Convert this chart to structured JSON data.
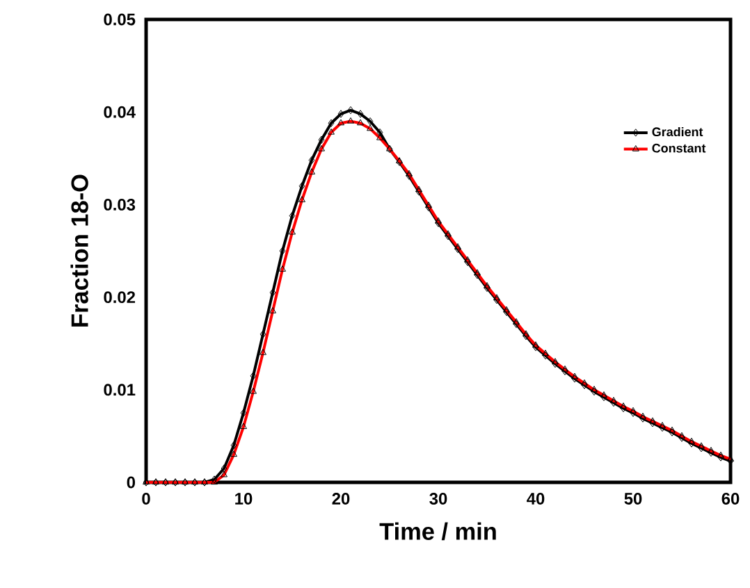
{
  "chart_data": {
    "type": "line",
    "xlabel": "Time / min",
    "ylabel": "Fraction 18-O",
    "x": [
      0,
      1,
      2,
      3,
      4,
      5,
      6,
      7,
      8,
      9,
      10,
      11,
      12,
      13,
      14,
      15,
      16,
      17,
      18,
      19,
      20,
      21,
      22,
      23,
      24,
      25,
      26,
      27,
      28,
      29,
      30,
      31,
      32,
      33,
      34,
      35,
      36,
      37,
      38,
      39,
      40,
      41,
      42,
      43,
      44,
      45,
      46,
      47,
      48,
      49,
      50,
      51,
      52,
      53,
      54,
      55,
      56,
      57,
      58,
      59,
      60
    ],
    "series": [
      {
        "name": "Gradient",
        "color": "#000000",
        "marker": "diamond",
        "values": [
          0,
          0,
          0,
          0,
          0,
          0,
          0,
          0.0003,
          0.0015,
          0.004,
          0.0075,
          0.0115,
          0.016,
          0.0205,
          0.025,
          0.0288,
          0.032,
          0.0348,
          0.037,
          0.0388,
          0.0398,
          0.0402,
          0.0398,
          0.039,
          0.0378,
          0.036,
          0.0346,
          0.0331,
          0.0314,
          0.0297,
          0.028,
          0.0266,
          0.0252,
          0.0238,
          0.0224,
          0.021,
          0.0197,
          0.0184,
          0.0171,
          0.0158,
          0.0146,
          0.0137,
          0.0128,
          0.012,
          0.0112,
          0.0105,
          0.0098,
          0.0092,
          0.0086,
          0.008,
          0.0075,
          0.0069,
          0.0064,
          0.0059,
          0.0054,
          0.0048,
          0.0042,
          0.0037,
          0.0032,
          0.0027,
          0.0023
        ]
      },
      {
        "name": "Constant",
        "color": "#ff0000",
        "marker": "triangle",
        "values": [
          0,
          0,
          0,
          0,
          0,
          0,
          0,
          0,
          0.0008,
          0.003,
          0.006,
          0.0098,
          0.014,
          0.0185,
          0.023,
          0.027,
          0.0305,
          0.0335,
          0.036,
          0.0378,
          0.0388,
          0.039,
          0.0388,
          0.0382,
          0.0372,
          0.036,
          0.0347,
          0.0333,
          0.0316,
          0.0299,
          0.0282,
          0.0268,
          0.0254,
          0.024,
          0.0226,
          0.0212,
          0.0199,
          0.0186,
          0.0173,
          0.016,
          0.0148,
          0.0139,
          0.013,
          0.0122,
          0.0114,
          0.0107,
          0.01,
          0.0094,
          0.0088,
          0.0082,
          0.0077,
          0.0071,
          0.0066,
          0.0061,
          0.0056,
          0.005,
          0.0044,
          0.0039,
          0.0034,
          0.0029,
          0.0025
        ]
      }
    ],
    "xlim": [
      0,
      60
    ],
    "xticks": [
      0,
      10,
      20,
      30,
      40,
      50,
      60
    ],
    "ylim": [
      0,
      0.05
    ],
    "yticks": [
      0,
      0.01,
      0.02,
      0.03,
      0.04,
      0.05
    ],
    "grid": false,
    "legend": "top right"
  }
}
